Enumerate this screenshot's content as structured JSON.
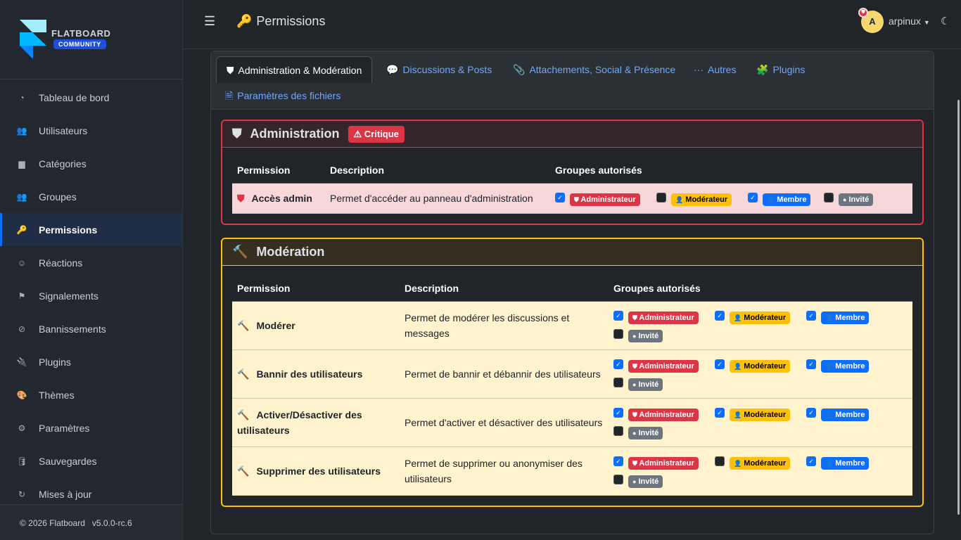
{
  "brand": {
    "name": "FLATBOARD",
    "edition": "COMMUNITY"
  },
  "sidebar": {
    "items": [
      {
        "label": "Tableau de bord",
        "icon": "gauge-icon",
        "glyph": "◔"
      },
      {
        "label": "Utilisateurs",
        "icon": "users-icon",
        "glyph": "👥"
      },
      {
        "label": "Catégories",
        "icon": "folder-icon",
        "glyph": "▆"
      },
      {
        "label": "Groupes",
        "icon": "user-group-icon",
        "glyph": "👥"
      },
      {
        "label": "Permissions",
        "icon": "key-icon",
        "glyph": "🔑",
        "active": true
      },
      {
        "label": "Réactions",
        "icon": "smile-icon",
        "glyph": "☺"
      },
      {
        "label": "Signalements",
        "icon": "flag-icon",
        "glyph": "⚑"
      },
      {
        "label": "Bannissements",
        "icon": "ban-icon",
        "glyph": "⊘"
      },
      {
        "label": "Plugins",
        "icon": "plug-icon",
        "glyph": "🔌"
      },
      {
        "label": "Thèmes",
        "icon": "palette-icon",
        "glyph": "🎨"
      },
      {
        "label": "Paramètres",
        "icon": "gear-icon",
        "glyph": "⚙"
      },
      {
        "label": "Sauvegardes",
        "icon": "database-icon",
        "glyph": "🛢"
      },
      {
        "label": "Mises à jour",
        "icon": "refresh-icon",
        "glyph": "↻"
      }
    ]
  },
  "footer": {
    "copyright": "© 2026 Flatboard",
    "version": "v5.0.0-rc.6"
  },
  "header": {
    "title": "Permissions",
    "user": "arpinux",
    "avatar_letter": "A"
  },
  "tabs": [
    {
      "label": "Administration & Modération",
      "active": true
    },
    {
      "label": "Discussions & Posts"
    },
    {
      "label": "Attachements, Social & Présence"
    },
    {
      "label": "Autres"
    },
    {
      "label": "Plugins"
    },
    {
      "label": "Paramètres des fichiers"
    }
  ],
  "groups": [
    "Administrateur",
    "Modérateur",
    "Membre",
    "Invité"
  ],
  "colors": {
    "admin": "#dc3545",
    "moderator": "#ffc107",
    "member": "#0d6efd",
    "guest": "#6c757d",
    "accent": "#0d6efd"
  },
  "sections": [
    {
      "title": "Administration",
      "badge": "Critique",
      "columns": [
        "Permission",
        "Description",
        "Groupes autorisés"
      ],
      "rows": [
        {
          "name": "Accès admin",
          "description": "Permet d'accéder au panneau d'administration",
          "checked": [
            true,
            false,
            true,
            false
          ]
        }
      ]
    },
    {
      "title": "Modération",
      "columns": [
        "Permission",
        "Description",
        "Groupes autorisés"
      ],
      "rows": [
        {
          "name": "Modérer",
          "description": "Permet de modérer les discussions et messages",
          "checked": [
            true,
            true,
            true,
            false
          ]
        },
        {
          "name": "Bannir des utilisateurs",
          "description": "Permet de bannir et débannir des utilisateurs",
          "checked": [
            true,
            true,
            true,
            false
          ]
        },
        {
          "name": "Activer/Désactiver des utilisateurs",
          "description": "Permet d'activer et désactiver des utilisateurs",
          "checked": [
            true,
            true,
            true,
            false
          ]
        },
        {
          "name": "Supprimer des utilisateurs",
          "description": "Permet de supprimer ou anonymiser des utilisateurs",
          "checked": [
            true,
            false,
            true,
            false
          ]
        }
      ]
    }
  ]
}
